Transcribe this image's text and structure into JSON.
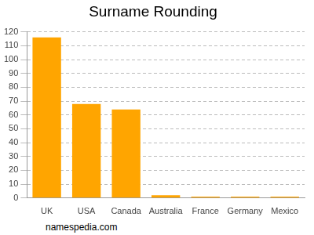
{
  "chart_data": {
    "type": "bar",
    "title": "Surname Rounding",
    "categories": [
      "UK",
      "USA",
      "Canada",
      "Australia",
      "France",
      "Germany",
      "Mexico"
    ],
    "values": [
      116,
      68,
      64,
      2,
      1,
      1,
      1
    ],
    "color": "#ffa500",
    "ylim": [
      0,
      120
    ],
    "yticks": [
      0,
      10,
      20,
      30,
      40,
      50,
      60,
      70,
      80,
      90,
      100,
      110,
      120
    ],
    "grid": true,
    "annotations": [
      "namespedia.com"
    ]
  }
}
